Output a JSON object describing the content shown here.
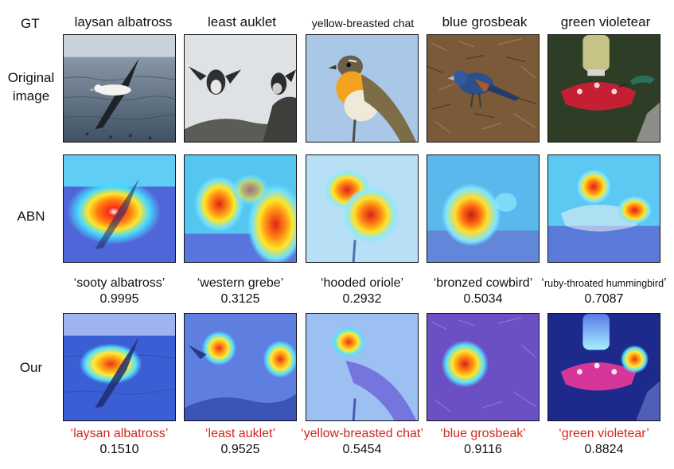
{
  "labels": {
    "gt": "GT",
    "original": "Original image",
    "abn": "ABN",
    "our": "Our"
  },
  "columns": [
    {
      "gt": "laysan albatross",
      "abn_prediction": "sooty albatross",
      "abn_score": "0.9995",
      "our_prediction": "laysan albatross",
      "our_score": "0.1510"
    },
    {
      "gt": "least auklet",
      "abn_prediction": "western grebe",
      "abn_score": "0.3125",
      "our_prediction": "least auklet",
      "our_score": "0.9525"
    },
    {
      "gt": "yellow-breasted chat",
      "abn_prediction": "hooded oriole",
      "abn_score": "0.2932",
      "our_prediction": "yellow-breasted chat",
      "our_score": "0.5454"
    },
    {
      "gt": "blue grosbeak",
      "abn_prediction": "bronzed cowbird",
      "abn_score": "0.5034",
      "our_prediction": "blue grosbeak",
      "our_score": "0.9116"
    },
    {
      "gt": "green violetear",
      "abn_prediction": "ruby-throated hummingbird",
      "abn_score": "0.7087",
      "our_prediction": "green violetear",
      "our_score": "0.8824"
    }
  ],
  "colors": {
    "correct_prediction": "#d0271d",
    "wrong_prediction": "#111111"
  }
}
